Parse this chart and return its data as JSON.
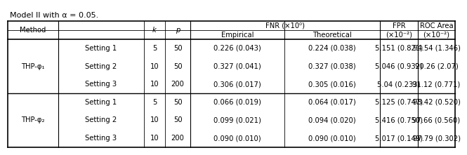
{
  "title": "Model II with α = 0.05.",
  "rows": [
    {
      "setting": "Setting 1",
      "k": "5",
      "p": "50",
      "fnr_emp": "0.226 (0.043)",
      "fnr_th": "0.224 (0.038)",
      "fpr": "5.151 (0.821)",
      "roc": "94.54 (1.346)"
    },
    {
      "setting": "Setting 2",
      "k": "10",
      "p": "50",
      "fnr_emp": "0.327 (0.041)",
      "fnr_th": "0.327 (0.038)",
      "fpr": "5.046 (0.932)",
      "roc": "90.26 (2.07)"
    },
    {
      "setting": "Setting 3",
      "k": "10",
      "p": "200",
      "fnr_emp": "0.306 (0.017)",
      "fnr_th": "0.305 (0.016)",
      "fpr": "5.04 (0.233)",
      "roc": "91.12 (0.771)"
    },
    {
      "setting": "Setting 1",
      "k": "5",
      "p": "50",
      "fnr_emp": "0.066 (0.019)",
      "fnr_th": "0.064 (0.017)",
      "fpr": "5.125 (0.747)",
      "roc": "98.42 (0.520)"
    },
    {
      "setting": "Setting 2",
      "k": "10",
      "p": "50",
      "fnr_emp": "0.099 (0.021)",
      "fnr_th": "0.094 (0.020)",
      "fpr": "5.416 (0.750)",
      "roc": "97.66 (0.560)"
    },
    {
      "setting": "Setting 3",
      "k": "10",
      "p": "200",
      "fnr_emp": "0.090 (0.010)",
      "fnr_th": "0.090 (0.010)",
      "fpr": "5.017 (0.149)",
      "roc": "97.79 (0.302)"
    }
  ],
  "method_labels": [
    "THP-φ₁",
    "THP-φ₂"
  ],
  "bg_color": "#ffffff",
  "text_color": "#000000",
  "fontsize": 7.2,
  "title_fontsize": 8.0
}
